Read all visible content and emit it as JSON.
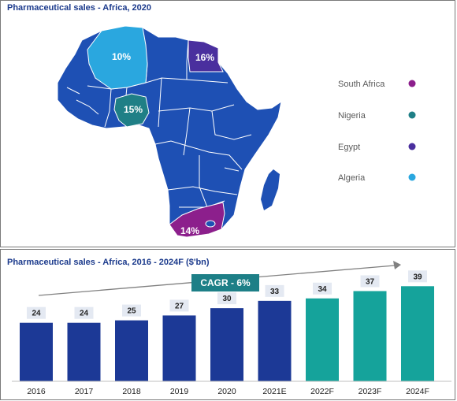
{
  "map_panel": {
    "title": "Pharmaceutical sales - Africa, 2020",
    "legend": [
      {
        "label": "South Africa",
        "color": "#8c1f8c"
      },
      {
        "label": "Nigeria",
        "color": "#1f7f86"
      },
      {
        "label": "Egypt",
        "color": "#4a2f9e"
      },
      {
        "label": "Algeria",
        "color": "#2aa7df"
      }
    ],
    "map_labels": {
      "algeria": "10%",
      "egypt": "16%",
      "nigeria": "15%",
      "south_africa": "14%"
    },
    "colors": {
      "continent": "#1e50b4",
      "borders": "#ffffff"
    }
  },
  "chart_data": {
    "type": "bar",
    "title": "Pharmaceutical sales - Africa, 2016 - 2024F ($'bn)",
    "categories": [
      "2016",
      "2017",
      "2018",
      "2019",
      "2020",
      "2021E",
      "2022F",
      "2023F",
      "2024F"
    ],
    "values": [
      24,
      24,
      25,
      27,
      30,
      33,
      34,
      37,
      39
    ],
    "ylim": [
      0,
      42
    ],
    "annotation": "CAGR - 6%",
    "colors": {
      "actual": "#1c3996",
      "forecast": "#15a39b",
      "label_bg": "#e4e9f2",
      "cagr_bg": "#1d7f87"
    },
    "forecast_start_index": 6
  }
}
